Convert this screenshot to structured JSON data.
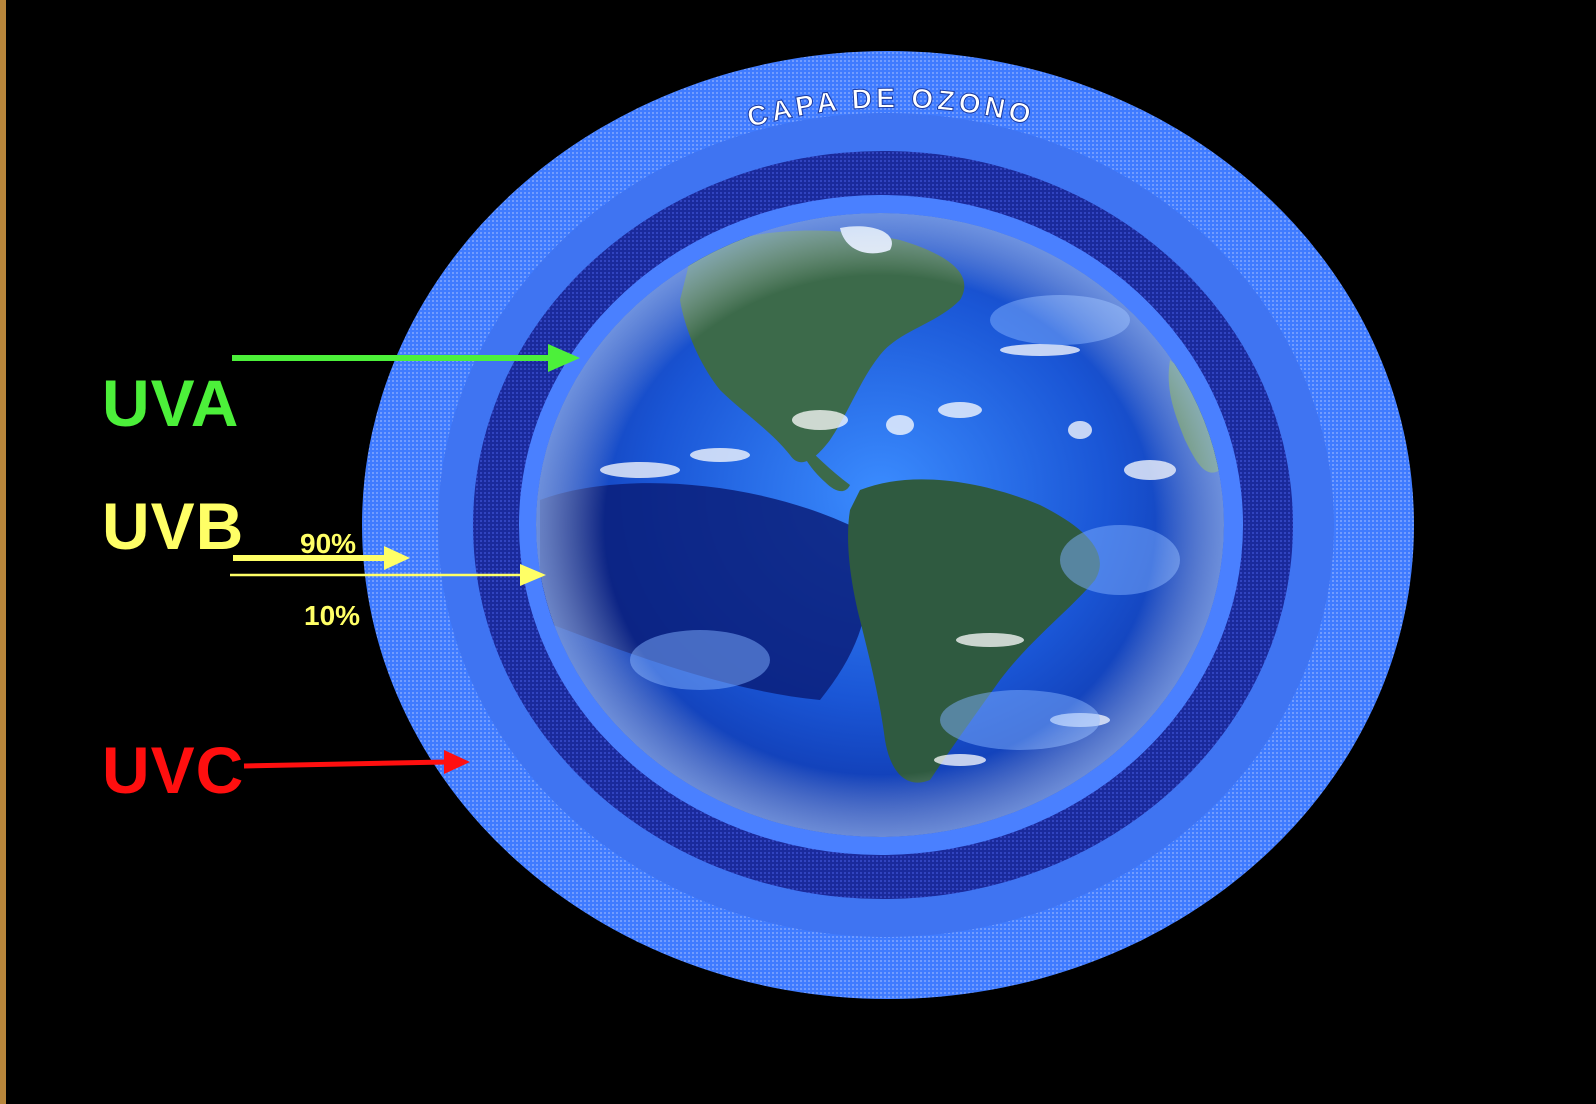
{
  "title": "CAPA DE OZONO",
  "colors": {
    "background": "#000000",
    "uva": "#4cf03a",
    "uvb": "#ffff66",
    "uvc": "#ff0f0f",
    "ozone_outer": "#3f7bff",
    "ozone_inner": "#1a2a9c",
    "ocean": "#1b5fe0",
    "land": "#3c6a4a"
  },
  "labels": {
    "uva": "UVA",
    "uvb": "UVB",
    "uvc": "UVC",
    "uvb_blocked": "90%",
    "uvb_passed": "10%"
  }
}
